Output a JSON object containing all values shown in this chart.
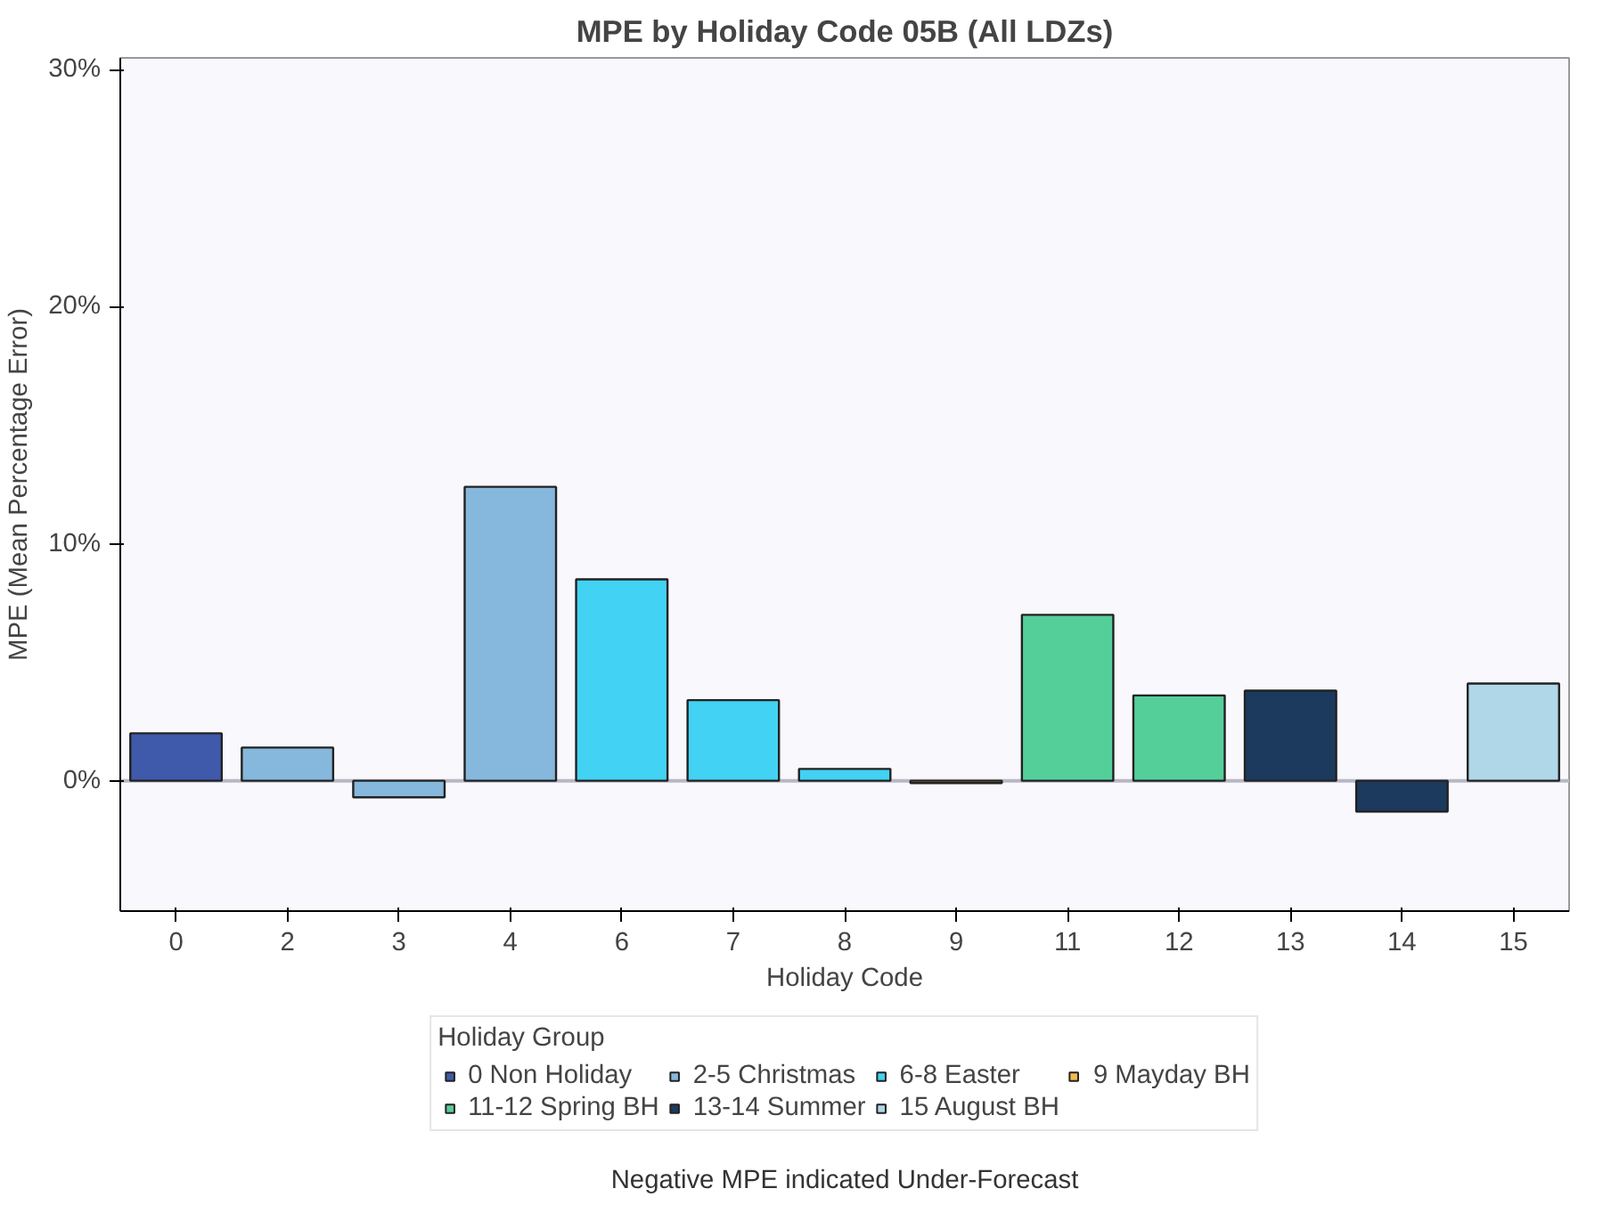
{
  "chart_data": {
    "type": "bar",
    "title": "MPE by Holiday Code 05B (All LDZs)",
    "xlabel": "Holiday Code",
    "ylabel": "MPE (Mean Percentage Error)",
    "legend_title": "Holiday Group",
    "legend": "bottom",
    "grid": false,
    "categories": [
      "0",
      "2",
      "3",
      "4",
      "6",
      "7",
      "8",
      "9",
      "11",
      "12",
      "13",
      "14",
      "15"
    ],
    "series": [
      {
        "name": "0 Non Holiday",
        "color": "#3f5aab",
        "values": [
          2.0,
          null,
          null,
          null,
          null,
          null,
          null,
          null,
          null,
          null,
          null,
          null,
          null
        ]
      },
      {
        "name": "2-5 Christmas",
        "color": "#85b8dc",
        "values": [
          null,
          1.4,
          -0.7,
          12.4,
          null,
          null,
          null,
          null,
          null,
          null,
          null,
          null,
          null
        ]
      },
      {
        "name": "6-8 Easter",
        "color": "#42d2f3",
        "values": [
          null,
          null,
          null,
          null,
          8.5,
          3.4,
          0.5,
          null,
          null,
          null,
          null,
          null,
          null
        ]
      },
      {
        "name": "9 Mayday BH",
        "color": "#f5b94f",
        "values": [
          null,
          null,
          null,
          null,
          null,
          null,
          null,
          -0.1,
          null,
          null,
          null,
          null,
          null
        ]
      },
      {
        "name": "11-12 Spring BH",
        "color": "#55cf9a",
        "values": [
          null,
          null,
          null,
          null,
          null,
          null,
          null,
          null,
          7.0,
          3.6,
          null,
          null,
          null
        ]
      },
      {
        "name": "13-14 Summer",
        "color": "#1c3a5e",
        "values": [
          null,
          null,
          null,
          null,
          null,
          null,
          null,
          null,
          null,
          null,
          3.8,
          -1.3,
          null
        ]
      },
      {
        "name": "15 August BH",
        "color": "#b0d7e8",
        "values": [
          null,
          null,
          null,
          null,
          null,
          null,
          null,
          null,
          null,
          null,
          null,
          null,
          4.1
        ]
      }
    ],
    "ylim": [
      -5.5,
      30.5
    ],
    "yticks": [
      {
        "value": 0,
        "label": "0%"
      },
      {
        "value": 10,
        "label": "10%"
      },
      {
        "value": 20,
        "label": "20%"
      },
      {
        "value": 30,
        "label": "30%"
      }
    ],
    "ref_lines": [
      {
        "axis": "y",
        "value": 0,
        "color": "#b8b8c4"
      }
    ],
    "annotations": [
      "Negative MPE indicated Under-Forecast"
    ]
  }
}
